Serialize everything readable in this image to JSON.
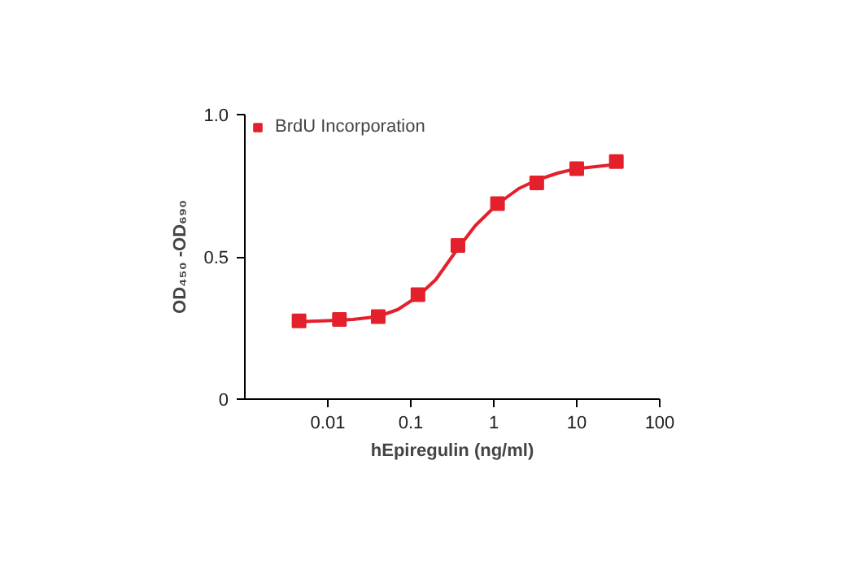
{
  "chart_data": {
    "type": "scatter",
    "xlabel": "hEpiregulin (ng/ml)",
    "ylabel": "OD₄₅₀ -OD₆₉₀",
    "log": "x",
    "xlim": [
      0.001,
      100
    ],
    "xticks": [
      0.01,
      0.1,
      1,
      10,
      100
    ],
    "ylim": [
      0,
      1.0
    ],
    "yticks": [
      0,
      0.5,
      {
        "value": 1.0,
        "label": "1.0"
      }
    ],
    "grid": false,
    "legend": "top left",
    "series": [
      {
        "name": "BrdU Incorporation",
        "marker": "square",
        "color": "#e3202b",
        "x": [
          0.0045,
          0.0138,
          0.0405,
          0.122,
          0.37,
          1.11,
          3.3,
          10,
          30
        ],
        "values": [
          0.275,
          0.28,
          0.29,
          0.367,
          0.54,
          0.687,
          0.76,
          0.81,
          0.835
        ]
      },
      {
        "type": "line",
        "color": "#e3202b",
        "x": [
          0.0045,
          0.01,
          0.02,
          0.04,
          0.07,
          0.12,
          0.2,
          0.37,
          0.6,
          1.1,
          2,
          3.3,
          6,
          10,
          30
        ],
        "values": [
          0.272,
          0.276,
          0.28,
          0.29,
          0.315,
          0.36,
          0.42,
          0.53,
          0.61,
          0.685,
          0.74,
          0.77,
          0.795,
          0.81,
          0.825
        ]
      }
    ]
  }
}
